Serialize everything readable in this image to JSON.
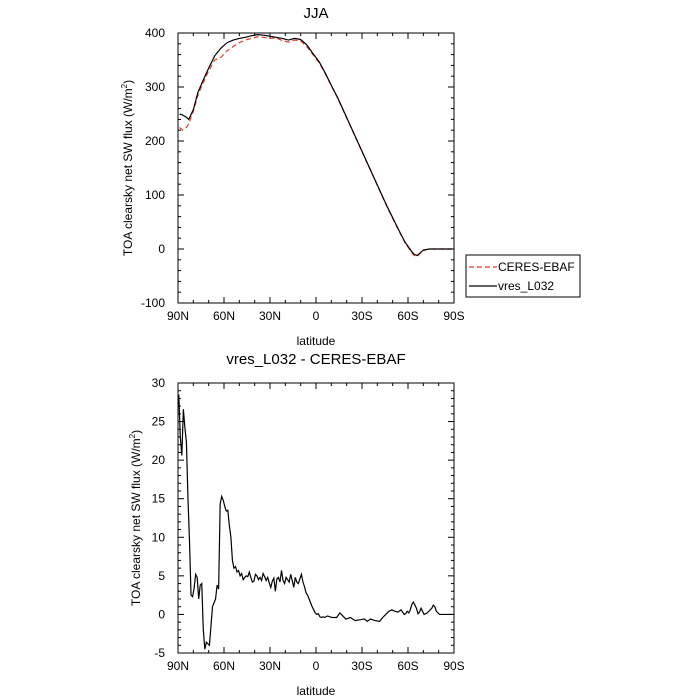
{
  "chart_data": [
    {
      "type": "line",
      "title": "JJA",
      "xlabel": "latitude",
      "ylabel": "TOA clearsky net SW flux (W/m",
      "ylabel_sup": "2",
      "ylabel_tail": ")",
      "xlim": [
        90,
        -90
      ],
      "ylim": [
        -100,
        400
      ],
      "x_ticks": [
        90,
        60,
        30,
        0,
        -30,
        -60,
        -90
      ],
      "x_tick_labels": [
        "90N",
        "60N",
        "30N",
        "0",
        "30S",
        "60S",
        "90S"
      ],
      "y_ticks": [
        -100,
        0,
        100,
        200,
        300,
        400
      ],
      "y_tick_labels": [
        "-100",
        "0",
        "100",
        "200",
        "300",
        "400"
      ],
      "legend": {
        "placement": "right",
        "entries": [
          "CERES-EBAF",
          "vres_L032"
        ]
      },
      "series": [
        {
          "name": "CERES-EBAF",
          "color": "#e8392b",
          "dash": "dashed",
          "x": [
            89,
            87,
            85,
            83,
            80,
            77,
            74,
            70,
            66,
            62,
            58,
            54,
            50,
            46,
            42,
            38,
            34,
            30,
            26,
            22,
            18,
            14,
            10,
            6,
            2,
            -2,
            -6,
            -10,
            -14,
            -18,
            -22,
            -26,
            -30,
            -34,
            -38,
            -42,
            -46,
            -50,
            -54,
            -58,
            -62,
            -64,
            -66,
            -68,
            -70,
            -74,
            -78,
            -82,
            -86,
            -89
          ],
          "values": [
            225,
            220,
            223,
            232,
            255,
            285,
            305,
            330,
            350,
            355,
            367,
            375,
            382,
            387,
            390,
            393,
            392,
            390,
            391,
            386,
            383,
            387,
            385,
            375,
            360,
            345,
            325,
            302,
            280,
            255,
            230,
            205,
            180,
            155,
            130,
            105,
            80,
            57,
            34,
            12,
            -5,
            -12,
            -14,
            -8,
            -3,
            0,
            0,
            0,
            0,
            0
          ]
        },
        {
          "name": "vres_L032",
          "color": "#000000",
          "dash": "solid",
          "x": [
            89,
            87,
            85,
            83,
            80,
            77,
            74,
            70,
            66,
            62,
            58,
            54,
            50,
            46,
            42,
            38,
            34,
            30,
            26,
            22,
            18,
            14,
            10,
            6,
            2,
            -2,
            -6,
            -10,
            -14,
            -18,
            -22,
            -26,
            -30,
            -34,
            -38,
            -42,
            -46,
            -50,
            -54,
            -58,
            -62,
            -64,
            -66,
            -68,
            -70,
            -74,
            -78,
            -82,
            -86,
            -89
          ],
          "values": [
            250,
            248,
            245,
            240,
            258,
            290,
            310,
            335,
            358,
            372,
            382,
            387,
            390,
            392,
            395,
            397,
            396,
            394,
            392,
            390,
            387,
            390,
            388,
            378,
            362,
            347,
            326,
            303,
            281,
            256,
            231,
            206,
            181,
            156,
            131,
            106,
            81,
            58,
            35,
            13,
            -3,
            -10,
            -12,
            -7,
            -2,
            0,
            0,
            0,
            0,
            0
          ]
        }
      ]
    },
    {
      "type": "line",
      "title": "vres_L032 - CERES-EBAF",
      "xlabel": "latitude",
      "ylabel": "TOA clearsky net SW flux (W/m",
      "ylabel_sup": "2",
      "ylabel_tail": ")",
      "xlim": [
        90,
        -90
      ],
      "ylim": [
        -5,
        30
      ],
      "x_ticks": [
        90,
        60,
        30,
        0,
        -30,
        -60,
        -90
      ],
      "x_tick_labels": [
        "90N",
        "60N",
        "30N",
        "0",
        "30S",
        "60S",
        "90S"
      ],
      "y_ticks": [
        -5,
        0,
        5,
        10,
        15,
        20,
        25,
        30
      ],
      "y_tick_labels": [
        "-5",
        "0",
        "5",
        "10",
        "15",
        "20",
        "25",
        "30"
      ],
      "series": [
        {
          "name": "vres_L032 - CERES-EBAF",
          "color": "#000000",
          "dash": "solid",
          "x": [
            89.5,
            88.5,
            87.5,
            86.5,
            85.5,
            84.5,
            83.5,
            82.5,
            81.5,
            80.5,
            79.5,
            78.5,
            77.5,
            76.5,
            75.5,
            74.5,
            73.5,
            72.5,
            71.5,
            70.5,
            69.5,
            68.5,
            67.5,
            66.5,
            65.5,
            64.5,
            63.5,
            62.5,
            61.5,
            60.5,
            59.5,
            58.5,
            57.5,
            56.5,
            55.5,
            54.5,
            53.5,
            52.5,
            51.5,
            50.5,
            49.5,
            48.5,
            47.5,
            46.5,
            45.5,
            44.5,
            43.5,
            42.5,
            41.5,
            40.5,
            39.5,
            38.5,
            37.5,
            36.5,
            35.5,
            34.5,
            33.5,
            32.5,
            31.5,
            30.5,
            29.5,
            28.5,
            27.5,
            26.5,
            25.5,
            24.5,
            23.5,
            22.5,
            21.5,
            20.5,
            19.5,
            18.5,
            17.5,
            16.5,
            15.5,
            14.5,
            13.5,
            12.5,
            11.5,
            10.5,
            9.5,
            8.5,
            7.5,
            6.5,
            5.5,
            4.5,
            3.5,
            2.5,
            1.5,
            0.5,
            -0.5,
            -1.5,
            -2.5,
            -3.5,
            -4.5,
            -5.5,
            -7.5,
            -10.5,
            -13.5,
            -15.5,
            -17.5,
            -19.5,
            -22.5,
            -25.5,
            -28.5,
            -31.5,
            -33.5,
            -35.5,
            -38.5,
            -41.5,
            -43.5,
            -45.5,
            -47.5,
            -49.5,
            -51.5,
            -53.5,
            -55.5,
            -57.5,
            -58.5,
            -59.5,
            -60.5,
            -61.5,
            -62.5,
            -63.5,
            -65.5,
            -66.5,
            -67.5,
            -68.5,
            -70.5,
            -72.5,
            -74.5,
            -75.5,
            -76.5,
            -77.5,
            -78.5,
            -80.5,
            -83.5,
            -86.5,
            -89.5
          ],
          "values": [
            28.5,
            23.0,
            20.6,
            26.6,
            24.2,
            22.3,
            15.0,
            9.5,
            2.5,
            2.3,
            3.4,
            5.2,
            4.8,
            2.0,
            3.8,
            4.0,
            -2.0,
            -4.5,
            -3.6,
            -3.8,
            -4.0,
            -1.5,
            1.0,
            1.5,
            2.0,
            3.8,
            3.3,
            14.3,
            15.3,
            14.8,
            14.0,
            13.4,
            13.5,
            11.5,
            10.0,
            7.0,
            6.0,
            6.2,
            5.5,
            5.7,
            5.0,
            5.3,
            4.5,
            4.8,
            5.0,
            4.9,
            5.5,
            4.8,
            4.2,
            4.3,
            5.2,
            5.0,
            4.5,
            4.8,
            4.4,
            5.3,
            4.9,
            4.4,
            4.8,
            4.1,
            3.5,
            4.3,
            4.7,
            3.0,
            4.6,
            4.8,
            4.2,
            5.7,
            4.4,
            4.0,
            4.8,
            4.5,
            4.2,
            5.2,
            4.4,
            3.5,
            4.8,
            4.2,
            4.0,
            4.6,
            5.2,
            4.2,
            3.6,
            2.8,
            2.5,
            2.0,
            1.5,
            1.0,
            0.6,
            0.2,
            0.0,
            0.1,
            -0.3,
            -0.4,
            -0.3,
            -0.4,
            -0.2,
            -0.4,
            -0.4,
            0.2,
            -0.2,
            -0.6,
            -0.4,
            -0.8,
            -0.7,
            -0.6,
            -0.9,
            -0.6,
            -0.8,
            -0.9,
            -0.4,
            0.0,
            0.4,
            0.6,
            0.4,
            0.3,
            0.6,
            0.0,
            0.1,
            0.4,
            0.2,
            0.6,
            1.3,
            1.6,
            0.8,
            0.1,
            0.3,
            0.8,
            0.0,
            0.2,
            0.6,
            0.8,
            1.2,
            1.0,
            0.4,
            0.0,
            0.0,
            0.0,
            0.0
          ]
        }
      ]
    }
  ]
}
